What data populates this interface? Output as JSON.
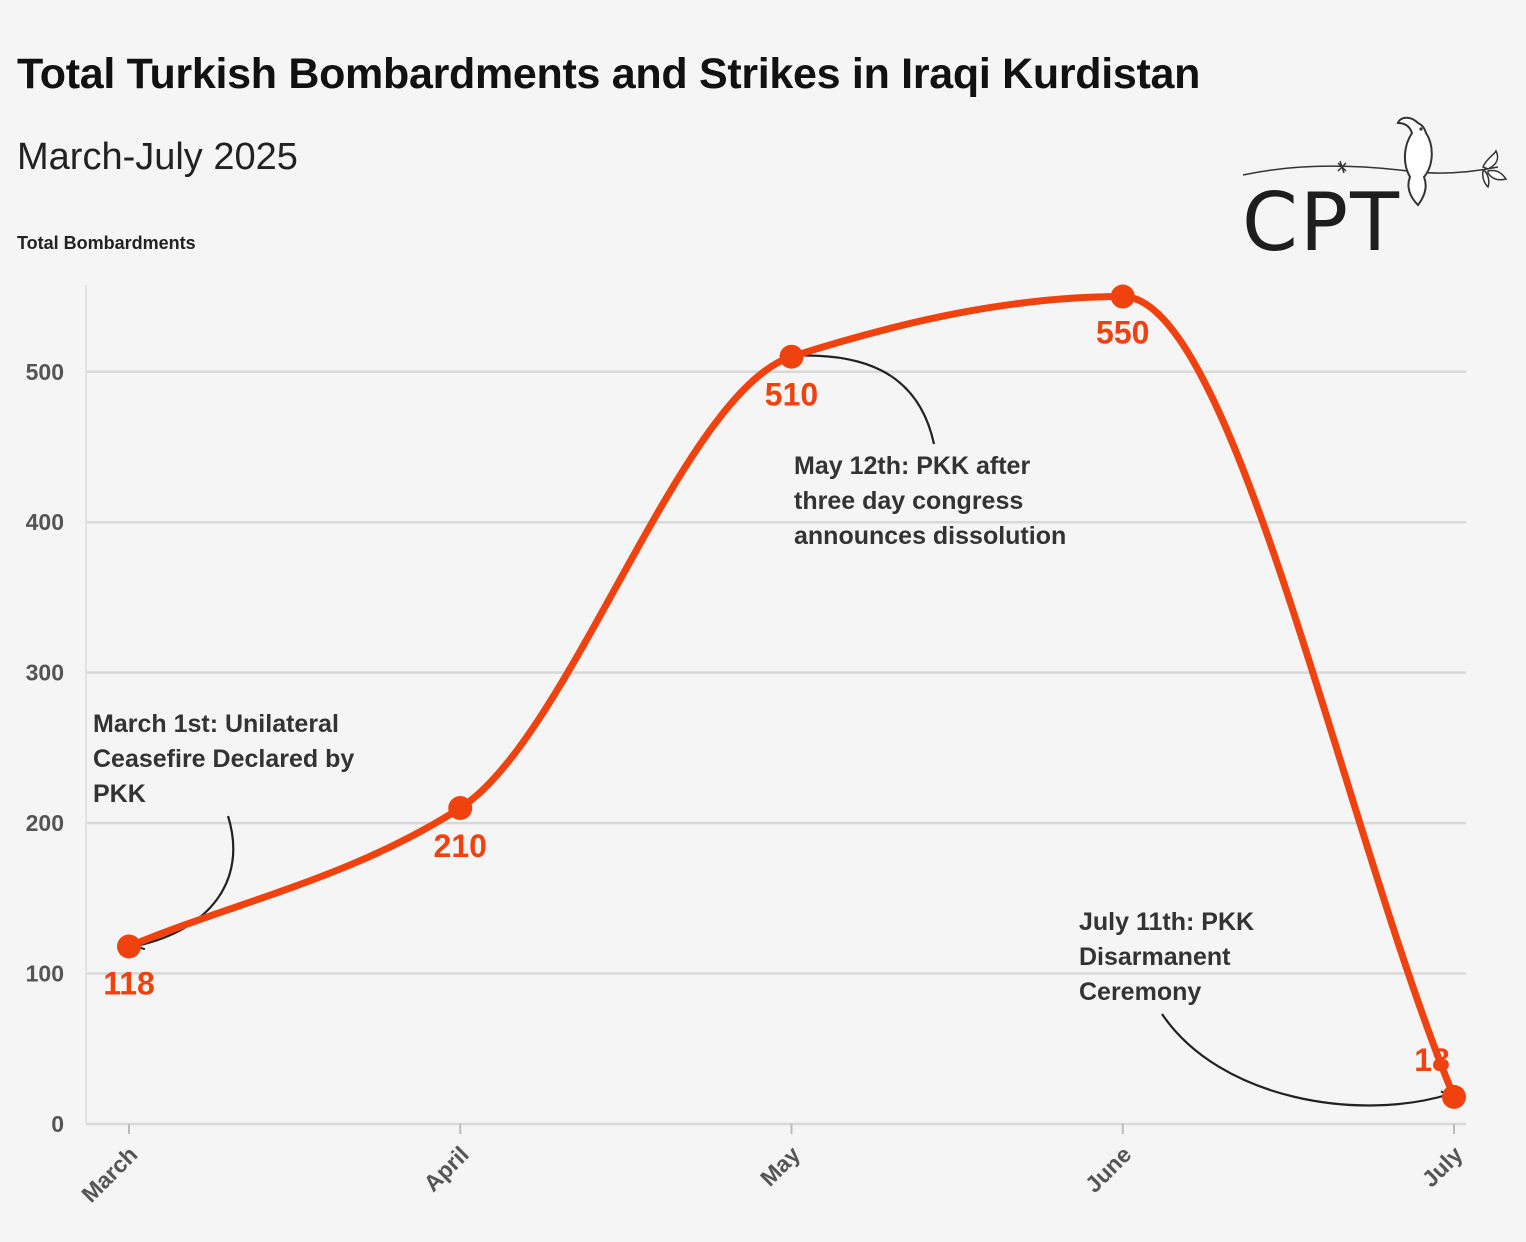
{
  "header": {
    "title": "Total Turkish Bombardments and Strikes in Iraqi Kurdistan",
    "subtitle": "March-July 2025",
    "y_axis_title": "Total Bombardments"
  },
  "logo": {
    "text": "CPT",
    "icon": "dove-on-barbed-wire-icon"
  },
  "colors": {
    "series": "#f0420f",
    "grid": "#d8d8d8",
    "axis_text": "#555555",
    "annotation_text": "#333333",
    "background": "#f5f5f5"
  },
  "chart_data": {
    "type": "line",
    "title": "Total Turkish Bombardments and Strikes in Iraqi Kurdistan",
    "subtitle": "March-July 2025",
    "xlabel": "",
    "ylabel": "Total Bombardments",
    "categories": [
      "March",
      "April",
      "May",
      "June",
      "July"
    ],
    "series": [
      {
        "values": [
          118,
          210,
          510,
          550,
          18
        ]
      }
    ],
    "data_labels": [
      "118",
      "210",
      "510",
      "550",
      "18"
    ],
    "ylim": [
      0,
      560
    ],
    "yticks": [
      0,
      100,
      200,
      300,
      400,
      500
    ],
    "grid": true,
    "curve": "smooth",
    "annotations": [
      {
        "point": 0,
        "lines": [
          "March 1st: Unilateral",
          "Ceasefire Declared by",
          "PKK"
        ]
      },
      {
        "point": 2,
        "lines": [
          "May 12th: PKK after",
          "three day congress",
          "announces dissolution"
        ]
      },
      {
        "point": 4,
        "lines": [
          "July 11th: PKK",
          "Disarmanent",
          "Ceremony"
        ]
      }
    ]
  }
}
